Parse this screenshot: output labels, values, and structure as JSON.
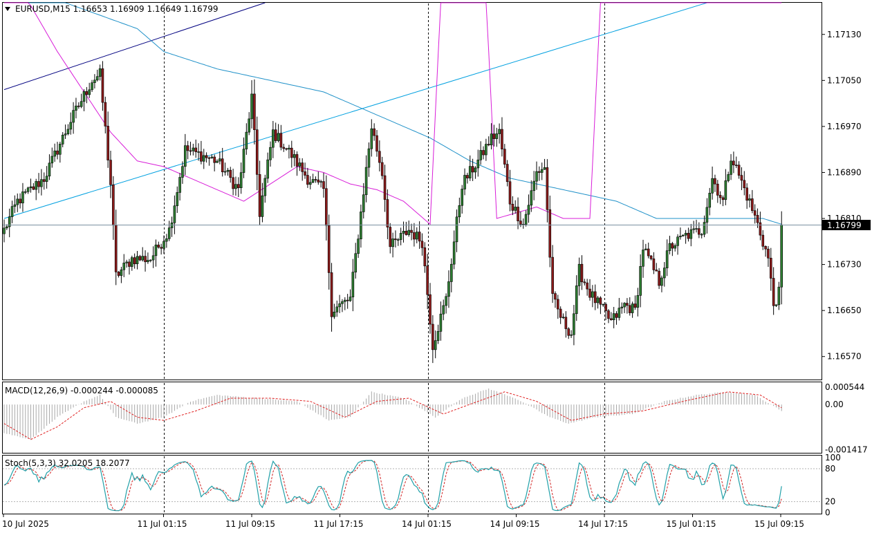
{
  "chart_data": [
    {
      "type": "candlestick",
      "panel": "main",
      "symbol": "EURUSD",
      "timeframe": "M15",
      "header_ohlc": "1.16653 1.16909 1.16649 1.16799",
      "header": "EURUSD,M15  1.16653 1.16909 1.16649 1.16799",
      "current_price": 1.16799,
      "current_price_label": "1.16799",
      "ylim": [
        1.1653,
        1.17185
      ],
      "yticks": [
        {
          "value": 1.1713,
          "label": "1.17130"
        },
        {
          "value": 1.1705,
          "label": "1.17050"
        },
        {
          "value": 1.1697,
          "label": "1.16970"
        },
        {
          "value": 1.1689,
          "label": "1.16890"
        },
        {
          "value": 1.1681,
          "label": "1.16810"
        },
        {
          "value": 1.1673,
          "label": "1.16730"
        },
        {
          "value": 1.1665,
          "label": "1.16650"
        },
        {
          "value": 1.1657,
          "label": "1.16570"
        }
      ],
      "xticks": [
        "10 Jul 2025",
        "11 Jul 01:15",
        "11 Jul 09:15",
        "11 Jul 17:15",
        "14 Jul 01:15",
        "14 Jul 09:15",
        "14 Jul 17:15",
        "15 Jul 01:15",
        "15 Jul 09:15"
      ],
      "period_separators": [
        "11 Jul 01:15",
        "14 Jul 01:15",
        "14 Jul 17:15"
      ],
      "close_path": [
        {
          "bar": 0,
          "close": 1.1679
        },
        {
          "bar": 5,
          "close": 1.1684
        },
        {
          "bar": 15,
          "close": 1.1688
        },
        {
          "bar": 25,
          "close": 1.1698
        },
        {
          "bar": 33,
          "close": 1.1705
        },
        {
          "bar": 36,
          "close": 1.1706
        },
        {
          "bar": 40,
          "close": 1.1687
        },
        {
          "bar": 42,
          "close": 1.1671
        },
        {
          "bar": 48,
          "close": 1.1674
        },
        {
          "bar": 55,
          "close": 1.1674
        },
        {
          "bar": 62,
          "close": 1.1679
        },
        {
          "bar": 68,
          "close": 1.1693
        },
        {
          "bar": 80,
          "close": 1.1691
        },
        {
          "bar": 88,
          "close": 1.1686
        },
        {
          "bar": 93,
          "close": 1.1702
        },
        {
          "bar": 96,
          "close": 1.1682
        },
        {
          "bar": 101,
          "close": 1.1696
        },
        {
          "bar": 108,
          "close": 1.1692
        },
        {
          "bar": 114,
          "close": 1.1688
        },
        {
          "bar": 120,
          "close": 1.1686
        },
        {
          "bar": 123,
          "close": 1.1665
        },
        {
          "bar": 130,
          "close": 1.1667
        },
        {
          "bar": 138,
          "close": 1.1697
        },
        {
          "bar": 142,
          "close": 1.1689
        },
        {
          "bar": 145,
          "close": 1.1676
        },
        {
          "bar": 152,
          "close": 1.1679
        },
        {
          "bar": 157,
          "close": 1.1677
        },
        {
          "bar": 161,
          "close": 1.1659
        },
        {
          "bar": 166,
          "close": 1.1667
        },
        {
          "bar": 172,
          "close": 1.1687
        },
        {
          "bar": 178,
          "close": 1.1691
        },
        {
          "bar": 183,
          "close": 1.1695
        },
        {
          "bar": 186,
          "close": 1.1696
        },
        {
          "bar": 190,
          "close": 1.1684
        },
        {
          "bar": 195,
          "close": 1.168
        },
        {
          "bar": 200,
          "close": 1.1689
        },
        {
          "bar": 203,
          "close": 1.169
        },
        {
          "bar": 206,
          "close": 1.1667
        },
        {
          "bar": 210,
          "close": 1.1663
        },
        {
          "bar": 213,
          "close": 1.1661
        },
        {
          "bar": 216,
          "close": 1.1672
        },
        {
          "bar": 220,
          "close": 1.1668
        },
        {
          "bar": 225,
          "close": 1.1665
        },
        {
          "bar": 228,
          "close": 1.1663
        },
        {
          "bar": 233,
          "close": 1.1666
        },
        {
          "bar": 237,
          "close": 1.1665
        },
        {
          "bar": 240,
          "close": 1.1676
        },
        {
          "bar": 246,
          "close": 1.167
        },
        {
          "bar": 250,
          "close": 1.1676
        },
        {
          "bar": 256,
          "close": 1.1678
        },
        {
          "bar": 262,
          "close": 1.1679
        },
        {
          "bar": 266,
          "close": 1.1688
        },
        {
          "bar": 270,
          "close": 1.1684
        },
        {
          "bar": 273,
          "close": 1.1692
        },
        {
          "bar": 279,
          "close": 1.1685
        },
        {
          "bar": 283,
          "close": 1.168
        },
        {
          "bar": 287,
          "close": 1.1674
        },
        {
          "bar": 289,
          "close": 1.1666
        },
        {
          "bar": 291,
          "close": 1.1668
        },
        {
          "bar": 292,
          "close": 1.16799
        }
      ],
      "moving_averages": [
        {
          "color": "#1e90c8",
          "points": [
            {
              "bar": 0,
              "value": 1.1722
            },
            {
              "bar": 20,
              "value": 1.1719
            },
            {
              "bar": 50,
              "value": 1.1714
            },
            {
              "bar": 60,
              "value": 1.171
            },
            {
              "bar": 80,
              "value": 1.1707
            },
            {
              "bar": 100,
              "value": 1.1705
            },
            {
              "bar": 120,
              "value": 1.1703
            },
            {
              "bar": 140,
              "value": 1.1699
            },
            {
              "bar": 160,
              "value": 1.1695
            },
            {
              "bar": 175,
              "value": 1.1691
            },
            {
              "bar": 190,
              "value": 1.1688
            },
            {
              "bar": 210,
              "value": 1.1686
            },
            {
              "bar": 230,
              "value": 1.1684
            },
            {
              "bar": 245,
              "value": 1.1681
            },
            {
              "bar": 265,
              "value": 1.1681
            },
            {
              "bar": 285,
              "value": 1.1681
            },
            {
              "bar": 292,
              "value": 1.168
            }
          ]
        },
        {
          "color": "#d81cd8",
          "points": [
            {
              "bar": 0,
              "value": 1.1726
            },
            {
              "bar": 10,
              "value": 1.1718
            },
            {
              "bar": 20,
              "value": 1.171
            },
            {
              "bar": 30,
              "value": 1.1703
            },
            {
              "bar": 40,
              "value": 1.1696
            },
            {
              "bar": 50,
              "value": 1.1691
            },
            {
              "bar": 60,
              "value": 1.169
            },
            {
              "bar": 70,
              "value": 1.1688
            },
            {
              "bar": 80,
              "value": 1.1686
            },
            {
              "bar": 90,
              "value": 1.1684
            },
            {
              "bar": 100,
              "value": 1.1687
            },
            {
              "bar": 110,
              "value": 1.169
            },
            {
              "bar": 120,
              "value": 1.1689
            },
            {
              "bar": 130,
              "value": 1.1687
            },
            {
              "bar": 140,
              "value": 1.1686
            },
            {
              "bar": 150,
              "value": 1.1684
            },
            {
              "bar": 160,
              "value": 1.168
            },
            {
              "bar": 170,
              "value": 1.1778
            },
            {
              "bar": 175,
              "value": 1.1778
            },
            {
              "bar": 185,
              "value": 1.1681
            },
            {
              "bar": 200,
              "value": 1.1683
            },
            {
              "bar": 210,
              "value": 1.1681
            },
            {
              "bar": 220,
              "value": 1.1681
            },
            {
              "bar": 230,
              "value": 1.1776
            },
            {
              "bar": 245,
              "value": 1.1772
            },
            {
              "bar": 255,
              "value": 1.1769
            },
            {
              "bar": 262,
              "value": 1.1767
            },
            {
              "bar": 270,
              "value": 1.1771
            },
            {
              "bar": 280,
              "value": 1.1776
            },
            {
              "bar": 292,
              "value": 1.1779
            }
          ]
        }
      ],
      "trendlines": [
        {
          "color": "#000080",
          "from": {
            "bar": 0,
            "value": 1.17034
          },
          "to": {
            "bar": 98,
            "value": 1.17185
          }
        },
        {
          "color": "#00a0e0",
          "from": {
            "bar": 0,
            "value": 1.1681
          },
          "to": {
            "bar": 264,
            "value": 1.17185
          }
        }
      ]
    },
    {
      "type": "bar",
      "panel": "macd",
      "header": "MACD(12,26,9) -0.000244 -0.000085",
      "ylim": [
        -0.00152,
        0.0007
      ],
      "yticks": [
        {
          "value": 0.000544,
          "label": "0.000544"
        },
        {
          "value": 0,
          "label": "0.00"
        },
        {
          "value": -0.001417,
          "label": "-0.001417"
        }
      ],
      "histogram_path": [
        {
          "bar": 0,
          "value": -0.0009
        },
        {
          "bar": 10,
          "value": -0.0011
        },
        {
          "bar": 20,
          "value": -0.0004
        },
        {
          "bar": 30,
          "value": 0.0001
        },
        {
          "bar": 36,
          "value": 0.0003
        },
        {
          "bar": 42,
          "value": -0.0004
        },
        {
          "bar": 50,
          "value": -0.0006
        },
        {
          "bar": 60,
          "value": -0.0004
        },
        {
          "bar": 70,
          "value": 0.0001
        },
        {
          "bar": 80,
          "value": 0.0003
        },
        {
          "bar": 95,
          "value": 0.0002
        },
        {
          "bar": 110,
          "value": 0.0001
        },
        {
          "bar": 122,
          "value": -0.0005
        },
        {
          "bar": 130,
          "value": -0.0004
        },
        {
          "bar": 138,
          "value": 0.0004
        },
        {
          "bar": 150,
          "value": 0.0002
        },
        {
          "bar": 162,
          "value": -0.0004
        },
        {
          "bar": 172,
          "value": 0.0002
        },
        {
          "bar": 182,
          "value": 0.0005
        },
        {
          "bar": 192,
          "value": 0.0002
        },
        {
          "bar": 205,
          "value": -0.0004
        },
        {
          "bar": 212,
          "value": -0.0006
        },
        {
          "bar": 222,
          "value": -0.0004
        },
        {
          "bar": 236,
          "value": -0.0003
        },
        {
          "bar": 248,
          "value": 0.0001
        },
        {
          "bar": 260,
          "value": 0.0003
        },
        {
          "bar": 272,
          "value": 0.0004
        },
        {
          "bar": 282,
          "value": 0.0003
        },
        {
          "bar": 292,
          "value": -0.0002
        }
      ],
      "signal_path": [
        {
          "bar": 0,
          "value": -0.0006
        },
        {
          "bar": 10,
          "value": -0.0011
        },
        {
          "bar": 20,
          "value": -0.0007
        },
        {
          "bar": 30,
          "value": -0.0001
        },
        {
          "bar": 40,
          "value": 0.0001
        },
        {
          "bar": 50,
          "value": -0.0004
        },
        {
          "bar": 60,
          "value": -0.0005
        },
        {
          "bar": 72,
          "value": -0.0002
        },
        {
          "bar": 85,
          "value": 0.0002
        },
        {
          "bar": 100,
          "value": 0.0002
        },
        {
          "bar": 115,
          "value": 0.0001
        },
        {
          "bar": 128,
          "value": -0.0004
        },
        {
          "bar": 140,
          "value": 0.0001
        },
        {
          "bar": 152,
          "value": 0.0002
        },
        {
          "bar": 165,
          "value": -0.0003
        },
        {
          "bar": 178,
          "value": 0.0001
        },
        {
          "bar": 188,
          "value": 0.0004
        },
        {
          "bar": 200,
          "value": 0.0001
        },
        {
          "bar": 213,
          "value": -0.0005
        },
        {
          "bar": 225,
          "value": -0.0003
        },
        {
          "bar": 240,
          "value": -0.0002
        },
        {
          "bar": 255,
          "value": 0.0001
        },
        {
          "bar": 272,
          "value": 0.0004
        },
        {
          "bar": 284,
          "value": 0.0003
        },
        {
          "bar": 292,
          "value": -0.0001
        }
      ]
    },
    {
      "type": "line",
      "panel": "stochastic",
      "header": "Stoch(5,3,3) 32.0205 18.2077",
      "ylim": [
        -2,
        104
      ],
      "yticks": [
        {
          "value": 100,
          "label": "100"
        },
        {
          "value": 80,
          "label": "80"
        },
        {
          "value": 20,
          "label": "20"
        },
        {
          "value": 0,
          "label": "0"
        }
      ],
      "levels": [
        80,
        20
      ],
      "main_color": "#20a0a8",
      "signal_color": "#d02020"
    }
  ]
}
